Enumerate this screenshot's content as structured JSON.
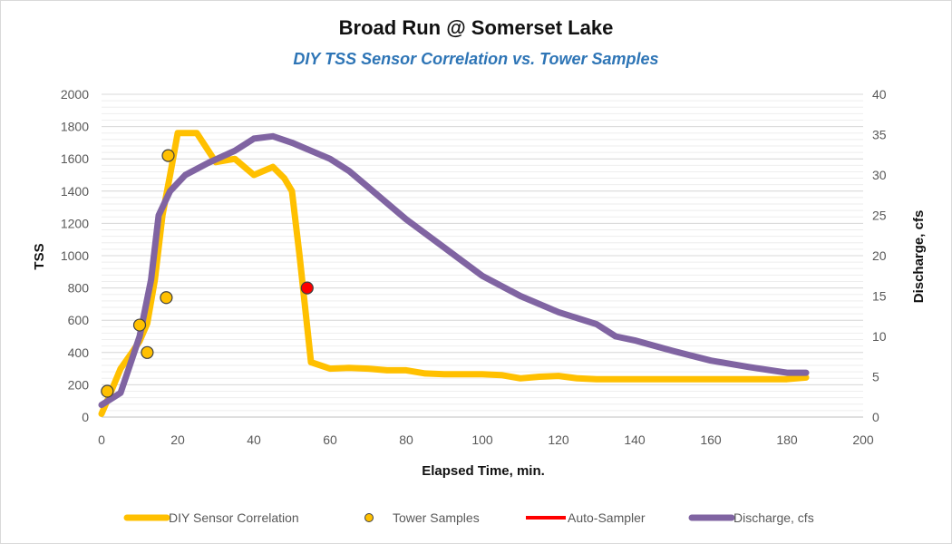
{
  "chart_data": {
    "type": "line",
    "title": "Broad Run @ Somerset Lake",
    "subtitle": "DIY TSS Sensor Correlation vs. Tower Samples",
    "xlabel": "Elapsed Time, min.",
    "ylabel": "TSS",
    "y2label": "Discharge, cfs",
    "xlim": [
      0,
      200
    ],
    "ylim": [
      0,
      2000
    ],
    "y2lim": [
      0,
      40
    ],
    "xticks": [
      0,
      20,
      40,
      60,
      80,
      100,
      120,
      140,
      160,
      180,
      200
    ],
    "yticks": [
      0,
      200,
      400,
      600,
      800,
      1000,
      1200,
      1400,
      1600,
      1800,
      2000
    ],
    "y2ticks": [
      0,
      5,
      10,
      15,
      20,
      25,
      30,
      35,
      40
    ],
    "grid": true,
    "legend_position": "bottom",
    "series": [
      {
        "name": "DIY Sensor Correlation",
        "kind": "line",
        "axis": "left",
        "color": "#ffc000",
        "x": [
          0,
          2,
          5,
          8,
          10,
          12,
          14,
          16,
          18,
          20,
          22,
          25,
          30,
          35,
          40,
          45,
          48,
          50,
          52,
          55,
          60,
          65,
          70,
          75,
          80,
          85,
          90,
          95,
          100,
          105,
          110,
          115,
          120,
          125,
          130,
          140,
          150,
          160,
          170,
          180,
          185
        ],
        "y": [
          20,
          130,
          300,
          400,
          470,
          580,
          850,
          1250,
          1500,
          1760,
          1760,
          1760,
          1580,
          1600,
          1500,
          1550,
          1480,
          1400,
          1000,
          340,
          300,
          305,
          300,
          290,
          290,
          270,
          265,
          265,
          265,
          260,
          240,
          250,
          255,
          240,
          235,
          235,
          235,
          235,
          235,
          235,
          245
        ]
      },
      {
        "name": "Tower Samples",
        "kind": "scatter",
        "axis": "left",
        "color": "#ffc000",
        "x": [
          1.5,
          10,
          12,
          17,
          17.5
        ],
        "y": [
          160,
          570,
          400,
          740,
          1620
        ]
      },
      {
        "name": "Auto-Sampler",
        "kind": "scatter",
        "axis": "left",
        "color": "#ff0000",
        "x": [
          54
        ],
        "y": [
          800
        ]
      },
      {
        "name": "Discharge, cfs",
        "kind": "line",
        "axis": "right",
        "color": "#8064a2",
        "x": [
          0,
          5,
          10,
          13,
          15,
          18,
          22,
          28,
          35,
          40,
          45,
          50,
          55,
          60,
          65,
          70,
          80,
          90,
          100,
          110,
          120,
          130,
          135,
          140,
          150,
          160,
          170,
          180,
          185
        ],
        "y": [
          1.5,
          3,
          10,
          17,
          25,
          28,
          30,
          31.5,
          33,
          34.5,
          34.8,
          34,
          33,
          32,
          30.5,
          28.5,
          24.5,
          21,
          17.5,
          15,
          13,
          11.5,
          10,
          9.5,
          8.2,
          7,
          6.2,
          5.5,
          5.5
        ]
      }
    ]
  }
}
